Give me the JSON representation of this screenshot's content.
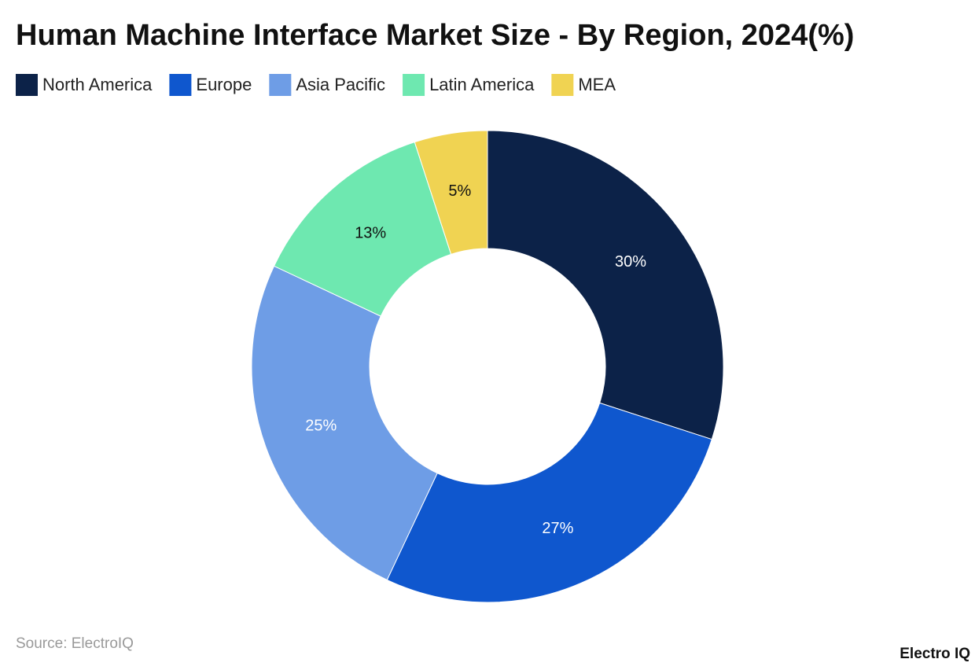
{
  "chart_data": {
    "type": "donut",
    "title": "Human Machine Interface Market Size - By Region, 2024(%)",
    "categories": [
      "North America",
      "Europe",
      "Asia Pacific",
      "Latin America",
      "MEA"
    ],
    "values": [
      30,
      27,
      25,
      13,
      5
    ],
    "value_labels": [
      "30%",
      "27%",
      "25%",
      "13%",
      "5%"
    ],
    "colors": [
      "#0c2248",
      "#0f57ce",
      "#6e9de6",
      "#6ee8b0",
      "#f0d352"
    ],
    "legend": "top-left",
    "source": "Source: ElectroIQ",
    "brand": "Electro IQ"
  }
}
